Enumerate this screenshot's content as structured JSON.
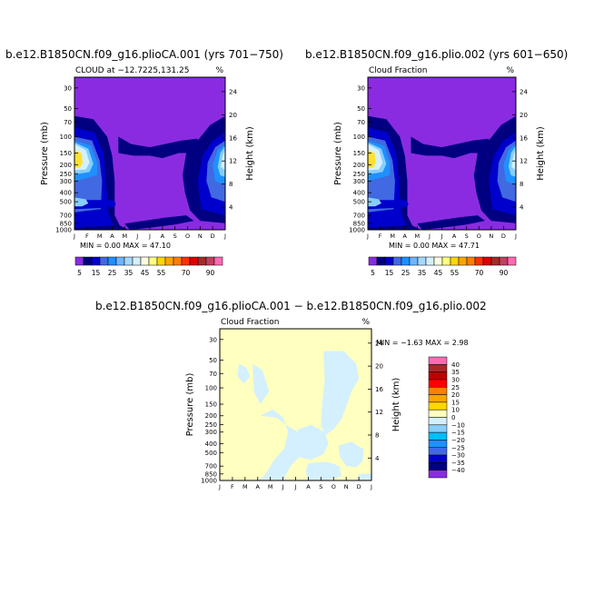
{
  "panels": [
    {
      "title": "b.e12.B1850CN.f09_g16.plioCA.001 (yrs 701−750)",
      "subtitle_left": "CLOUD at −12.7225,131.25",
      "subtitle_right": "%",
      "ylabel_left": "Pressure (mb)",
      "ylabel_right": "Height (km)",
      "stats": "MIN =    0.00 MAX =   47.10"
    },
    {
      "title": "b.e12.B1850CN.f09_g16.plio.002 (yrs 601−650)",
      "subtitle_left": "Cloud Fraction",
      "subtitle_right": "%",
      "ylabel_left": "Pressure (mb)",
      "ylabel_right": "Height (km)",
      "stats": "MIN =    0.00 MAX =   47.71"
    },
    {
      "title": "b.e12.B1850CN.f09_g16.plioCA.001 − b.e12.B1850CN.f09_g16.plio.002",
      "subtitle_left": "Cloud Fraction",
      "subtitle_right": "%",
      "ylabel_left": "Pressure (mb)",
      "ylabel_right": "Height (km)",
      "stats": "MIN =  −1.63 MAX =    2.98"
    }
  ],
  "colors": {
    "purple": "#8a2be2",
    "navy": "#000080",
    "blue": "#0000cd",
    "royal": "#4169e1",
    "dodger": "#1e90ff",
    "sky": "#87cefa",
    "lightcyan": "#d4f0ff",
    "lightyellow": "#ffffc0",
    "yellow": "#ffe033"
  },
  "chart_data": [
    {
      "type": "heatmap",
      "variable": "CLOUD",
      "units": "%",
      "months": [
        "J",
        "F",
        "M",
        "A",
        "M",
        "J",
        "J",
        "A",
        "S",
        "O",
        "N",
        "D",
        "J"
      ],
      "pressure_ticks": [
        30,
        50,
        70,
        100,
        150,
        200,
        250,
        300,
        400,
        500,
        700,
        850,
        1000
      ],
      "height_ticks_km": [
        24,
        20,
        16,
        12,
        8,
        4
      ],
      "min": 0.0,
      "max": 47.1,
      "contour_levels": [
        5,
        10,
        15,
        20,
        25,
        30,
        35,
        40,
        45,
        50,
        55,
        60,
        65,
        70,
        75,
        80,
        85,
        90
      ],
      "colorbar_labels": [
        "5",
        "15",
        "25",
        "35",
        "45",
        "55",
        "70",
        "90"
      ],
      "colorbar_colors": [
        "#8a2be2",
        "#000080",
        "#0000cd",
        "#4169e1",
        "#1e90ff",
        "#6fb4ff",
        "#a6d8ff",
        "#d4f0ff",
        "#fffbe0",
        "#ffff80",
        "#ffd700",
        "#ffa500",
        "#ff7f00",
        "#ff3000",
        "#e00000",
        "#a52a2a",
        "#c04060",
        "#ff69b4"
      ]
    },
    {
      "type": "heatmap",
      "variable": "Cloud Fraction",
      "units": "%",
      "months": [
        "J",
        "F",
        "M",
        "A",
        "M",
        "J",
        "J",
        "A",
        "S",
        "O",
        "N",
        "D",
        "J"
      ],
      "pressure_ticks": [
        30,
        50,
        70,
        100,
        150,
        200,
        250,
        300,
        400,
        500,
        700,
        850,
        1000
      ],
      "height_ticks_km": [
        24,
        20,
        16,
        12,
        8,
        4
      ],
      "min": 0.0,
      "max": 47.71,
      "contour_levels": [
        5,
        10,
        15,
        20,
        25,
        30,
        35,
        40,
        45,
        50,
        55,
        60,
        65,
        70,
        75,
        80,
        85,
        90
      ],
      "colorbar_labels": [
        "5",
        "15",
        "25",
        "35",
        "45",
        "55",
        "70",
        "90"
      ],
      "colorbar_colors": [
        "#8a2be2",
        "#000080",
        "#0000cd",
        "#4169e1",
        "#1e90ff",
        "#6fb4ff",
        "#a6d8ff",
        "#d4f0ff",
        "#fffbe0",
        "#ffff80",
        "#ffd700",
        "#ffa500",
        "#ff7f00",
        "#ff3000",
        "#e00000",
        "#a52a2a",
        "#c04060",
        "#ff69b4"
      ]
    },
    {
      "type": "heatmap",
      "variable": "Cloud Fraction difference",
      "units": "%",
      "months": [
        "J",
        "F",
        "M",
        "A",
        "M",
        "J",
        "J",
        "A",
        "S",
        "O",
        "N",
        "D",
        "J"
      ],
      "pressure_ticks": [
        30,
        50,
        70,
        100,
        150,
        200,
        250,
        300,
        400,
        500,
        700,
        850,
        1000
      ],
      "height_ticks_km": [
        24,
        20,
        16,
        12,
        8,
        4
      ],
      "min": -1.63,
      "max": 2.98,
      "colorbar_labels": [
        "40",
        "35",
        "30",
        "25",
        "20",
        "15",
        "10",
        "0",
        "−10",
        "−15",
        "−20",
        "−25",
        "−30",
        "−35",
        "−40"
      ],
      "colorbar_colors": [
        "#ff69b4",
        "#a52a2a",
        "#c00000",
        "#ff0000",
        "#ff7f00",
        "#ffa500",
        "#ffd700",
        "#ffffc0",
        "#d4f0ff",
        "#87cefa",
        "#00bfff",
        "#1e90ff",
        "#4169e1",
        "#0000cd",
        "#000080",
        "#8a2be2"
      ]
    }
  ]
}
